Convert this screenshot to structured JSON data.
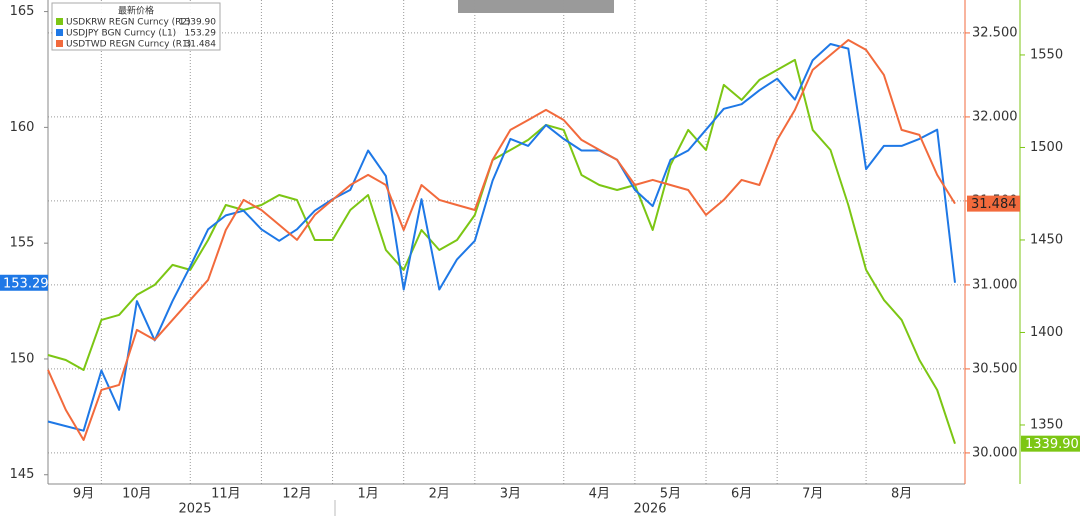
{
  "chart_data": {
    "type": "line",
    "legend_title": "最新价格",
    "categories": [
      null,
      null,
      "9月",
      null,
      null,
      "10月",
      null,
      null,
      null,
      null,
      "11月",
      null,
      null,
      null,
      "12月",
      null,
      null,
      null,
      "1月",
      null,
      null,
      null,
      "2月",
      null,
      null,
      null,
      "3月",
      null,
      null,
      null,
      null,
      "4月",
      null,
      null,
      null,
      "5月",
      null,
      null,
      null,
      "6月",
      null,
      null,
      null,
      "7月",
      null,
      null,
      null,
      null,
      "8月",
      null,
      null,
      null
    ],
    "years": [
      "2025",
      "2026"
    ],
    "ylim": [
      144.6,
      165.5
    ],
    "yticks": [
      145,
      150,
      155,
      160,
      165
    ],
    "y2lim": [
      29.815,
      32.696
    ],
    "y2ticks": [
      {
        "value": 30,
        "label": "30.000"
      },
      {
        "value": 30.5,
        "label": "30.500"
      },
      {
        "value": 31,
        "label": "31.000"
      },
      {
        "value": 31.5,
        "label": "31.500"
      },
      {
        "value": 32,
        "label": "32.000"
      },
      {
        "value": 32.5,
        "label": "32.500"
      }
    ],
    "y3lim": [
      1318.1,
      1579.7
    ],
    "y3ticks": [
      1350,
      1400,
      1450,
      1500,
      1550
    ],
    "grid": true,
    "series": [
      {
        "name": "USDKRW REGN Curncy  (R2)",
        "axis": "y3",
        "color": "#7cc614",
        "last": {
          "value": 1339.9,
          "label": "1339.90"
        },
        "values": [
          1387.8,
          1385.1,
          1379.7,
          1406.8,
          1409.5,
          1420.3,
          1425.7,
          1436.5,
          1433.8,
          1450.0,
          1468.9,
          1466.2,
          1468.9,
          1474.3,
          1471.6,
          1450.0,
          1450.0,
          1466.2,
          1474.3,
          1444.6,
          1433.8,
          1455.4,
          1444.6,
          1450.0,
          1463.5,
          1493.2,
          1498.6,
          1504.1,
          1512.2,
          1509.5,
          1485.1,
          1479.7,
          1477.0,
          1479.7,
          1455.4,
          1490.5,
          1509.5,
          1498.6,
          1533.8,
          1525.7,
          1536.5,
          1541.9,
          1547.3,
          1509.5,
          1498.6,
          1468.9,
          1433.8,
          1417.6,
          1406.8,
          1385.1,
          1368.9,
          1339.9
        ]
      },
      {
        "name": "USDJPY BGN Curncy  (L1)",
        "axis": "y",
        "color": "#1e78e6",
        "last": {
          "value": 153.29,
          "label": "153.29"
        },
        "values": [
          147.3,
          147.1,
          146.9,
          149.5,
          147.8,
          152.5,
          150.8,
          152.5,
          154.0,
          155.6,
          156.2,
          156.4,
          155.6,
          155.1,
          155.6,
          156.4,
          156.9,
          157.3,
          159.0,
          157.9,
          153.0,
          156.9,
          153.0,
          154.3,
          155.1,
          157.7,
          159.5,
          159.2,
          160.1,
          159.5,
          159.0,
          159.0,
          158.6,
          157.3,
          156.6,
          158.6,
          159.0,
          159.9,
          160.8,
          161.0,
          161.6,
          162.1,
          161.2,
          162.9,
          163.6,
          163.4,
          158.2,
          159.2,
          159.2,
          159.5,
          159.9,
          153.29
        ]
      },
      {
        "name": "USDTWD REGN Curncy  (R1)",
        "axis": "y2",
        "color": "#f26a3c",
        "last": {
          "value": 31.484,
          "label": "31.484"
        },
        "values": [
          30.494,
          30.256,
          30.077,
          30.375,
          30.405,
          30.732,
          30.673,
          30.792,
          30.911,
          31.03,
          31.327,
          31.506,
          31.446,
          31.357,
          31.268,
          31.417,
          31.506,
          31.595,
          31.655,
          31.595,
          31.327,
          31.595,
          31.506,
          31.476,
          31.446,
          31.744,
          31.923,
          31.982,
          32.042,
          31.982,
          31.863,
          31.804,
          31.744,
          31.595,
          31.625,
          31.595,
          31.565,
          31.417,
          31.506,
          31.625,
          31.595,
          31.863,
          32.042,
          32.28,
          32.369,
          32.458,
          32.399,
          32.25,
          31.923,
          31.893,
          31.655,
          31.484
        ]
      }
    ]
  }
}
